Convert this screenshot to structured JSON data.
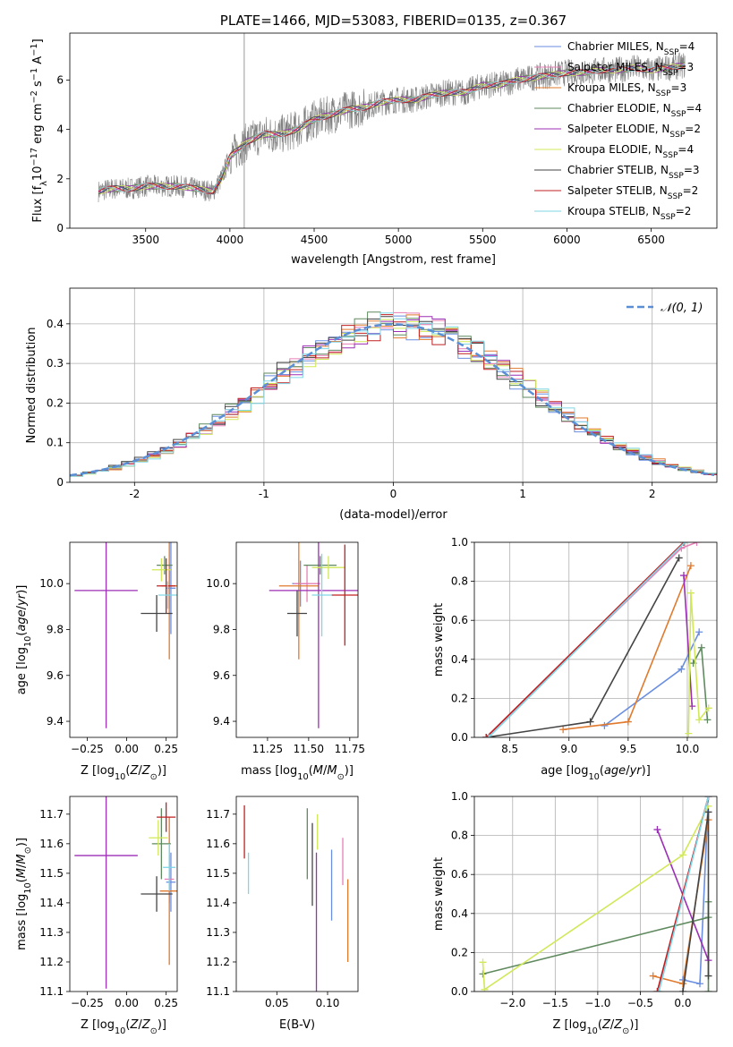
{
  "colors": {
    "chabrier_miles": "#6a8ee0",
    "salpeter_miles": "#e67fb5",
    "kroupa_miles": "#e07a2e",
    "chabrier_elodie": "#5f8a5f",
    "salpeter_elodie": "#9b2fb5",
    "kroupa_elodie": "#d2e85a",
    "chabrier_stelib": "#444444",
    "salpeter_stelib": "#c22020",
    "kroupa_stelib": "#7fd6e6",
    "normal": "#5a8fd6"
  },
  "chart_data": [
    {
      "id": "spectrum",
      "type": "line",
      "title": "PLATE=1466, MJD=53083, FIBERID=0135, z=0.367",
      "xlabel": "wavelength [Angstrom, rest frame]",
      "ylabel": "Flux [f_λ10^-17 erg cm^-2 s^-1 A^-1]",
      "ylabel_parts": [
        "Flux [f",
        "λ",
        "10",
        "−17",
        " erg cm",
        "−2",
        " s",
        "−1",
        " A",
        "−1",
        "]"
      ],
      "xlim": [
        3050,
        6890
      ],
      "ylim": [
        0,
        7.9
      ],
      "xticks": [
        3500,
        4000,
        4500,
        5000,
        5500,
        6000,
        6500
      ],
      "yticks": [
        0,
        2,
        4,
        6
      ],
      "vline_x": 4085,
      "continuum": {
        "x": [
          3220,
          3300,
          3400,
          3500,
          3600,
          3700,
          3800,
          3900,
          3950,
          4000,
          4100,
          4200,
          4300,
          4400,
          4500,
          4600,
          4700,
          4800,
          4900,
          5000,
          5100,
          5200,
          5300,
          5400,
          5500,
          5600,
          5700,
          5800,
          5900,
          6000,
          6100,
          6200,
          6300,
          6400,
          6500,
          6600,
          6700
        ],
        "y": [
          1.5,
          1.6,
          1.6,
          1.7,
          1.7,
          1.7,
          1.6,
          1.5,
          2.0,
          2.9,
          3.5,
          3.8,
          3.8,
          4.0,
          4.4,
          4.6,
          4.8,
          4.9,
          5.1,
          5.2,
          5.2,
          5.4,
          5.5,
          5.5,
          5.8,
          5.8,
          6.0,
          6.1,
          6.2,
          6.3,
          6.3,
          6.4,
          6.4,
          6.5,
          6.4,
          6.5,
          6.6
        ]
      },
      "legend": [
        {
          "label": "Chabrier MILES, N",
          "sub": "SSP",
          "n": "=4",
          "color_key": "chabrier_miles"
        },
        {
          "label": "Salpeter MILES, N",
          "sub": "SSP",
          "n": "=3",
          "color_key": "salpeter_miles"
        },
        {
          "label": "Kroupa MILES, N",
          "sub": "SSP",
          "n": "=3",
          "color_key": "kroupa_miles"
        },
        {
          "label": "Chabrier ELODIE, N",
          "sub": "SSP",
          "n": "=4",
          "color_key": "chabrier_elodie"
        },
        {
          "label": "Salpeter ELODIE, N",
          "sub": "SSP",
          "n": "=2",
          "color_key": "salpeter_elodie"
        },
        {
          "label": "Kroupa ELODIE, N",
          "sub": "SSP",
          "n": "=4",
          "color_key": "kroupa_elodie"
        },
        {
          "label": "Chabrier STELIB, N",
          "sub": "SSP",
          "n": "=3",
          "color_key": "chabrier_stelib"
        },
        {
          "label": "Salpeter STELIB, N",
          "sub": "SSP",
          "n": "=2",
          "color_key": "salpeter_stelib"
        },
        {
          "label": "Kroupa STELIB, N",
          "sub": "SSP",
          "n": "=2",
          "color_key": "kroupa_stelib"
        }
      ]
    },
    {
      "id": "residuals",
      "type": "histogram",
      "xlabel": "(data-model)/error",
      "ylabel": "Normed distribution",
      "xlim": [
        -2.5,
        2.5
      ],
      "ylim": [
        0,
        0.49
      ],
      "xticks": [
        -2,
        -1,
        0,
        1,
        2
      ],
      "yticks": [
        0.0,
        0.1,
        0.2,
        0.3,
        0.4
      ],
      "grid": true,
      "bin_width": 0.1,
      "legend": {
        "label": "𝒩(0, 1)",
        "position": "top-right"
      },
      "reference_curve": "normal(0,1)"
    },
    {
      "id": "z_age",
      "type": "errorbar",
      "xlabel": "Z [log10(Z/Z⊙)]",
      "ylabel": "age  [log10(age/yr)]",
      "xlim": [
        -0.36,
        0.32
      ],
      "ylim": [
        9.33,
        10.18
      ],
      "xticks": [
        -0.25,
        0.0,
        0.25
      ],
      "xticklabels": [
        "−0.25",
        "0.00",
        "0.25"
      ],
      "yticks": [
        9.4,
        9.6,
        9.8,
        10.0
      ],
      "yticklabels": [
        "9.4",
        "9.6",
        "9.8",
        "10.0"
      ],
      "points": [
        {
          "c": "chabrier_miles",
          "x": 0.28,
          "xerr": 0.03,
          "y": 9.98,
          "yerr": 0.2
        },
        {
          "c": "salpeter_miles",
          "x": 0.27,
          "xerr": 0.03,
          "y": 9.99,
          "yerr": 0.1
        },
        {
          "c": "kroupa_miles",
          "x": 0.27,
          "xerr": 0.05,
          "y": 9.99,
          "yerr": 0.32
        },
        {
          "c": "chabrier_elodie",
          "x": 0.24,
          "xerr": 0.05,
          "y": 10.08,
          "yerr": 0.04
        },
        {
          "c": "salpeter_elodie",
          "x": -0.13,
          "xerr": 0.2,
          "y": 9.97,
          "yerr": 0.6
        },
        {
          "c": "kroupa_elodie",
          "x": 0.22,
          "xerr": 0.06,
          "y": 10.06,
          "yerr": 0.05
        },
        {
          "c": "chabrier_stelib",
          "x": 0.19,
          "xerr": 0.1,
          "y": 9.87,
          "yerr": 0.08
        },
        {
          "c": "salpeter_stelib",
          "x": 0.25,
          "xerr": 0.06,
          "y": 9.99,
          "yerr": 0.12
        },
        {
          "c": "kroupa_stelib",
          "x": 0.26,
          "xerr": 0.06,
          "y": 9.95,
          "yerr": 0.06
        }
      ]
    },
    {
      "id": "mass_age",
      "type": "errorbar",
      "xlabel": "mass [log10(M/M⊙)]",
      "ylabel": "",
      "xlim": [
        11.06,
        11.8
      ],
      "ylim": [
        9.33,
        10.18
      ],
      "xticks": [
        11.25,
        11.5,
        11.75
      ],
      "xticklabels": [
        "11.25",
        "11.50",
        "11.75"
      ],
      "yticks": [
        9.4,
        9.6,
        9.8,
        10.0
      ],
      "yticklabels": [
        "9.4",
        "9.6",
        "9.8",
        "10.0"
      ],
      "points": [
        {
          "c": "chabrier_miles",
          "x": 11.45,
          "xerr": 0.05,
          "y": 10.0,
          "yerr": 0.1
        },
        {
          "c": "salpeter_miles",
          "x": 11.49,
          "xerr": 0.08,
          "y": 10.0,
          "yerr": 0.08
        },
        {
          "c": "kroupa_miles",
          "x": 11.44,
          "xerr": 0.12,
          "y": 9.99,
          "yerr": 0.32
        },
        {
          "c": "chabrier_elodie",
          "x": 11.57,
          "xerr": 0.1,
          "y": 10.08,
          "yerr": 0.04
        },
        {
          "c": "salpeter_elodie",
          "x": 11.56,
          "xerr": 0.3,
          "y": 9.97,
          "yerr": 0.6
        },
        {
          "c": "kroupa_elodie",
          "x": 11.62,
          "xerr": 0.1,
          "y": 10.07,
          "yerr": 0.05
        },
        {
          "c": "chabrier_stelib",
          "x": 11.43,
          "xerr": 0.06,
          "y": 9.87,
          "yerr": 0.1
        },
        {
          "c": "salpeter_stelib",
          "x": 11.72,
          "xerr": 0.08,
          "y": 9.95,
          "yerr": 0.22
        },
        {
          "c": "kroupa_stelib",
          "x": 11.58,
          "xerr": 0.06,
          "y": 9.95,
          "yerr": 0.18
        }
      ]
    },
    {
      "id": "age_weight",
      "type": "line",
      "xlabel": "age  [log10(age/yr)]",
      "ylabel": "mass weight",
      "xlim": [
        8.2,
        10.25
      ],
      "ylim": [
        0,
        1
      ],
      "xticks": [
        8.5,
        9.0,
        9.5,
        10.0
      ],
      "xticklabels": [
        "8.5",
        "9.0",
        "9.5",
        "10.0"
      ],
      "yticks": [
        0.0,
        0.2,
        0.4,
        0.6,
        0.8,
        1.0
      ],
      "yticklabels": [
        "0.0",
        "0.2",
        "0.4",
        "0.6",
        "0.8",
        "1.0"
      ],
      "grid": true,
      "series": [
        {
          "c": "chabrier_miles",
          "x": [
            9.3,
            9.95,
            10.1
          ],
          "y": [
            0.06,
            0.35,
            0.54
          ]
        },
        {
          "c": "salpeter_miles",
          "x": [
            8.3,
            9.95,
            10.08
          ],
          "y": [
            0.0,
            0.97,
            1.0
          ]
        },
        {
          "c": "kroupa_miles",
          "x": [
            8.95,
            9.5,
            10.03
          ],
          "y": [
            0.04,
            0.08,
            0.88
          ]
        },
        {
          "c": "chabrier_elodie",
          "x": [
            10.05,
            10.12,
            10.17
          ],
          "y": [
            0.38,
            0.46,
            0.09
          ]
        },
        {
          "c": "salpeter_elodie",
          "x": [
            9.97,
            10.04
          ],
          "y": [
            0.83,
            0.16
          ]
        },
        {
          "c": "kroupa_elodie",
          "x": [
            10.01,
            10.03,
            10.1,
            10.18
          ],
          "y": [
            0.02,
            0.74,
            0.09,
            0.15
          ]
        },
        {
          "c": "chabrier_stelib",
          "x": [
            8.3,
            9.18,
            9.93
          ],
          "y": [
            0.0,
            0.08,
            0.92
          ]
        },
        {
          "c": "salpeter_stelib",
          "x": [
            8.3,
            9.97
          ],
          "y": [
            0.0,
            1.0
          ]
        },
        {
          "c": "kroupa_stelib",
          "x": [
            8.32,
            9.98
          ],
          "y": [
            0.0,
            1.0
          ]
        }
      ]
    },
    {
      "id": "z_mass",
      "type": "errorbar",
      "xlabel": "Z [log10(Z/Z⊙)]",
      "ylabel": "mass [log10(M/M⊙)]",
      "xlim": [
        -0.36,
        0.32
      ],
      "ylim": [
        11.1,
        11.76
      ],
      "xticks": [
        -0.25,
        0.0,
        0.25
      ],
      "xticklabels": [
        "−0.25",
        "0.00",
        "0.25"
      ],
      "yticks": [
        11.1,
        11.2,
        11.3,
        11.4,
        11.5,
        11.6,
        11.7
      ],
      "yticklabels": [
        "11.1",
        "11.2",
        "11.3",
        "11.4",
        "11.5",
        "11.6",
        "11.7"
      ],
      "points": [
        {
          "c": "chabrier_miles",
          "x": 0.28,
          "xerr": 0.03,
          "y": 11.47,
          "yerr": 0.1
        },
        {
          "c": "salpeter_miles",
          "x": 0.27,
          "xerr": 0.03,
          "y": 11.48,
          "yerr": 0.08
        },
        {
          "c": "kroupa_miles",
          "x": 0.27,
          "xerr": 0.06,
          "y": 11.44,
          "yerr": 0.25
        },
        {
          "c": "chabrier_elodie",
          "x": 0.22,
          "xerr": 0.06,
          "y": 11.6,
          "yerr": 0.12
        },
        {
          "c": "salpeter_elodie",
          "x": -0.13,
          "xerr": 0.2,
          "y": 11.56,
          "yerr": 0.45
        },
        {
          "c": "kroupa_elodie",
          "x": 0.2,
          "xerr": 0.06,
          "y": 11.62,
          "yerr": 0.06
        },
        {
          "c": "chabrier_stelib",
          "x": 0.19,
          "xerr": 0.1,
          "y": 11.43,
          "yerr": 0.06
        },
        {
          "c": "salpeter_stelib",
          "x": 0.25,
          "xerr": 0.06,
          "y": 11.69,
          "yerr": 0.05
        },
        {
          "c": "kroupa_stelib",
          "x": 0.27,
          "xerr": 0.04,
          "y": 11.52,
          "yerr": 0.08
        }
      ]
    },
    {
      "id": "ebv_mass",
      "type": "errorbar",
      "xlabel": "E(B-V)",
      "ylabel": "",
      "xlim": [
        0.01,
        0.13
      ],
      "ylim": [
        11.1,
        11.76
      ],
      "xticks": [
        0.05,
        0.1
      ],
      "xticklabels": [
        "0.05",
        "0.10"
      ],
      "yticks": [
        11.1,
        11.2,
        11.3,
        11.4,
        11.5,
        11.6,
        11.7
      ],
      "yticklabels": [
        "11.1",
        "11.2",
        "11.3",
        "11.4",
        "11.5",
        "11.6",
        "11.7"
      ],
      "points": [
        {
          "c": "chabrier_miles",
          "x": 0.104,
          "y": 11.46,
          "yerr": 0.12
        },
        {
          "c": "salpeter_miles",
          "x": 0.115,
          "y": 11.54,
          "yerr": 0.08
        },
        {
          "c": "kroupa_miles",
          "x": 0.12,
          "y": 11.34,
          "yerr": 0.14
        },
        {
          "c": "chabrier_elodie",
          "x": 0.08,
          "y": 11.6,
          "yerr": 0.12
        },
        {
          "c": "salpeter_elodie",
          "x": 0.089,
          "y": 11.33,
          "yerr": 0.24
        },
        {
          "c": "kroupa_elodie",
          "x": 0.09,
          "y": 11.64,
          "yerr": 0.06
        },
        {
          "c": "chabrier_stelib",
          "x": 0.085,
          "y": 11.53,
          "yerr": 0.14
        },
        {
          "c": "salpeter_stelib",
          "x": 0.018,
          "y": 11.64,
          "yerr": 0.09
        },
        {
          "c": "kroupa_stelib",
          "x": 0.022,
          "y": 11.5,
          "yerr": 0.07
        }
      ]
    },
    {
      "id": "z_weight",
      "type": "line",
      "xlabel": "Z [log10(Z/Z⊙)]",
      "ylabel": "mass weight",
      "xlim": [
        -2.45,
        0.4
      ],
      "ylim": [
        0,
        1
      ],
      "xticks": [
        -2.0,
        -1.5,
        -1.0,
        -0.5,
        0.0
      ],
      "xticklabels": [
        "−2.0",
        "−1.5",
        "−1.0",
        "−0.5",
        "0.0"
      ],
      "yticks": [
        0.0,
        0.2,
        0.4,
        0.6,
        0.8,
        1.0
      ],
      "yticklabels": [
        "0.0",
        "0.2",
        "0.4",
        "0.6",
        "0.8",
        "1.0"
      ],
      "grid": true,
      "series": [
        {
          "c": "chabrier_miles",
          "x": [
            0.0,
            0.2,
            0.3
          ],
          "y": [
            0.06,
            0.04,
            1.0
          ]
        },
        {
          "c": "salpeter_miles",
          "x": [
            -0.3,
            0.3
          ],
          "y": [
            0.0,
            1.0
          ]
        },
        {
          "c": "kroupa_miles",
          "x": [
            -0.35,
            0.0,
            0.3
          ],
          "y": [
            0.08,
            0.04,
            0.88
          ]
        },
        {
          "c": "chabrier_elodie",
          "x": [
            -2.35,
            0.3,
            0.3,
            0.3
          ],
          "y": [
            0.09,
            0.38,
            0.46,
            0.0
          ]
        },
        {
          "c": "salpeter_elodie",
          "x": [
            -0.3,
            0.3
          ],
          "y": [
            0.83,
            0.16
          ]
        },
        {
          "c": "kroupa_elodie",
          "x": [
            -2.35,
            -2.33,
            0.0,
            0.3
          ],
          "y": [
            0.15,
            0.01,
            0.7,
            0.95
          ]
        },
        {
          "c": "chabrier_stelib",
          "x": [
            0.0,
            0.3,
            0.3
          ],
          "y": [
            0.0,
            0.92,
            0.08
          ]
        },
        {
          "c": "salpeter_stelib",
          "x": [
            -0.3,
            0.3
          ],
          "y": [
            0.0,
            1.0
          ]
        },
        {
          "c": "kroupa_stelib",
          "x": [
            -0.28,
            0.3
          ],
          "y": [
            0.0,
            1.0
          ]
        }
      ]
    }
  ]
}
